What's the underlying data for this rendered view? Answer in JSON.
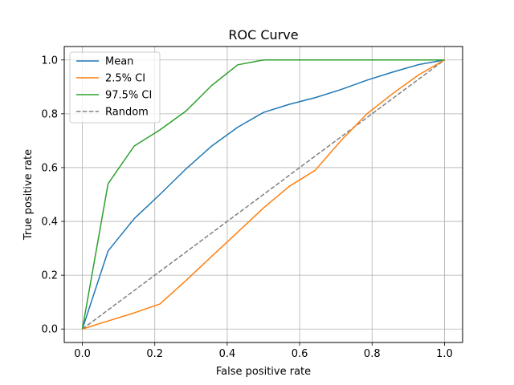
{
  "chart_data": {
    "type": "line",
    "title": "ROC Curve",
    "xlabel": "False positive rate",
    "ylabel": "True positive rate",
    "xlim": [
      -0.05,
      1.05
    ],
    "ylim": [
      -0.05,
      1.05
    ],
    "xticks": [
      0.0,
      0.2,
      0.4,
      0.6,
      0.8,
      1.0
    ],
    "yticks": [
      0.0,
      0.2,
      0.4,
      0.6,
      0.8,
      1.0
    ],
    "xtick_labels": [
      "0.0",
      "0.2",
      "0.4",
      "0.6",
      "0.8",
      "1.0"
    ],
    "ytick_labels": [
      "0.0",
      "0.2",
      "0.4",
      "0.6",
      "0.8",
      "1.0"
    ],
    "grid": true,
    "legend_position": "top-left",
    "series": [
      {
        "name": "Mean",
        "color": "#1f77b4",
        "style": "solid",
        "x": [
          0.0,
          0.071,
          0.143,
          0.214,
          0.286,
          0.357,
          0.429,
          0.5,
          0.571,
          0.643,
          0.714,
          0.786,
          0.857,
          0.929,
          1.0
        ],
        "y": [
          0.0,
          0.29,
          0.41,
          0.5,
          0.595,
          0.68,
          0.75,
          0.805,
          0.835,
          0.86,
          0.89,
          0.925,
          0.955,
          0.983,
          1.0
        ]
      },
      {
        "name": "2.5% CI",
        "color": "#ff7f0e",
        "style": "solid",
        "x": [
          0.0,
          0.071,
          0.143,
          0.214,
          0.286,
          0.357,
          0.429,
          0.5,
          0.571,
          0.643,
          0.714,
          0.786,
          0.857,
          0.929,
          1.0
        ],
        "y": [
          0.0,
          0.03,
          0.06,
          0.093,
          0.18,
          0.27,
          0.36,
          0.45,
          0.53,
          0.59,
          0.7,
          0.8,
          0.875,
          0.945,
          1.0
        ]
      },
      {
        "name": "97.5% CI",
        "color": "#2ca02c",
        "style": "solid",
        "x": [
          0.0,
          0.071,
          0.143,
          0.214,
          0.286,
          0.357,
          0.429,
          0.5,
          0.571,
          0.643,
          0.714,
          0.786,
          0.857,
          0.929,
          1.0
        ],
        "y": [
          0.0,
          0.54,
          0.68,
          0.74,
          0.81,
          0.905,
          0.982,
          1.0,
          1.0,
          1.0,
          1.0,
          1.0,
          1.0,
          1.0,
          1.0
        ]
      },
      {
        "name": "Random",
        "color": "#808080",
        "style": "dashed",
        "x": [
          0.0,
          1.0
        ],
        "y": [
          0.0,
          1.0
        ]
      }
    ]
  }
}
